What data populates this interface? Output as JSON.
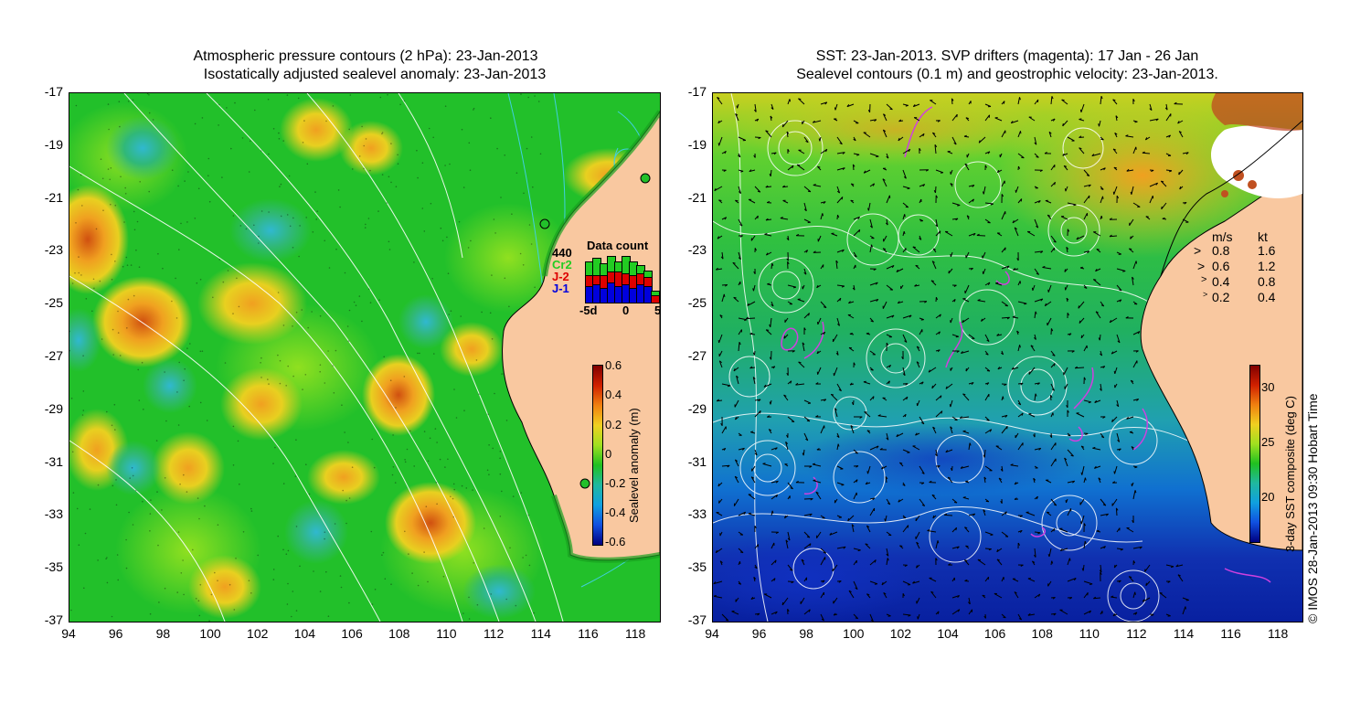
{
  "left_panel": {
    "title_line1": "Atmospheric pressure contours (2 hPa): 23-Jan-2013",
    "title_line2": "Isostatically adjusted sealevel anomaly: 23-Jan-2013",
    "y_ticks": [
      "-17",
      "-19",
      "-21",
      "-23",
      "-25",
      "-27",
      "-29",
      "-31",
      "-33",
      "-35",
      "-37"
    ],
    "x_ticks": [
      "94",
      "96",
      "98",
      "100",
      "102",
      "104",
      "106",
      "108",
      "110",
      "112",
      "114",
      "116",
      "118"
    ],
    "colorbar": {
      "title": "Sealevel anomaly (m)",
      "labels": [
        "0.6",
        "0.4",
        "0.2",
        "0",
        "-0.2",
        "-0.4",
        "-0.6"
      ]
    },
    "data_count": {
      "title": "Data count",
      "satellites": [
        {
          "name": "440",
          "color": "#000000"
        },
        {
          "name": "Cr2",
          "color": "#22cc22"
        },
        {
          "name": "J-2",
          "color": "#dd0000"
        },
        {
          "name": "J-1",
          "color": "#0000dd"
        }
      ],
      "x_labels": [
        "-5d",
        "0",
        "5"
      ]
    }
  },
  "right_panel": {
    "title_line1": "SST: 23-Jan-2013. SVP drifters (magenta): 17 Jan - 26 Jan",
    "title_line2": "Sealevel contours (0.1 m) and geostrophic velocity: 23-Jan-2013.",
    "y_ticks": [
      "-17",
      "-19",
      "-21",
      "-23",
      "-25",
      "-27",
      "-29",
      "-31",
      "-33",
      "-35",
      "-37"
    ],
    "x_ticks": [
      "94",
      "96",
      "98",
      "100",
      "102",
      "104",
      "106",
      "108",
      "110",
      "112",
      "114",
      "116",
      "118"
    ],
    "colorbar": {
      "title": "3-day SST composite (deg C)",
      "labels": [
        "30",
        "25",
        "20"
      ]
    },
    "velocity_legend": {
      "header_ms": "m/s",
      "header_kt": "kt",
      "rows": [
        {
          "ms": "0.8",
          "kt": "1.6"
        },
        {
          "ms": "0.6",
          "kt": "1.2"
        },
        {
          "ms": "0.4",
          "kt": "0.8"
        },
        {
          "ms": "0.2",
          "kt": "0.4"
        }
      ]
    }
  },
  "credit": "© IMOS 28-Jan-2013 09:30 Hobart Time",
  "colors": {
    "land": "#f9c8a0",
    "coast": "#000000",
    "contour_white": "#ffffff",
    "contour_cyan": "#40d0e0"
  }
}
